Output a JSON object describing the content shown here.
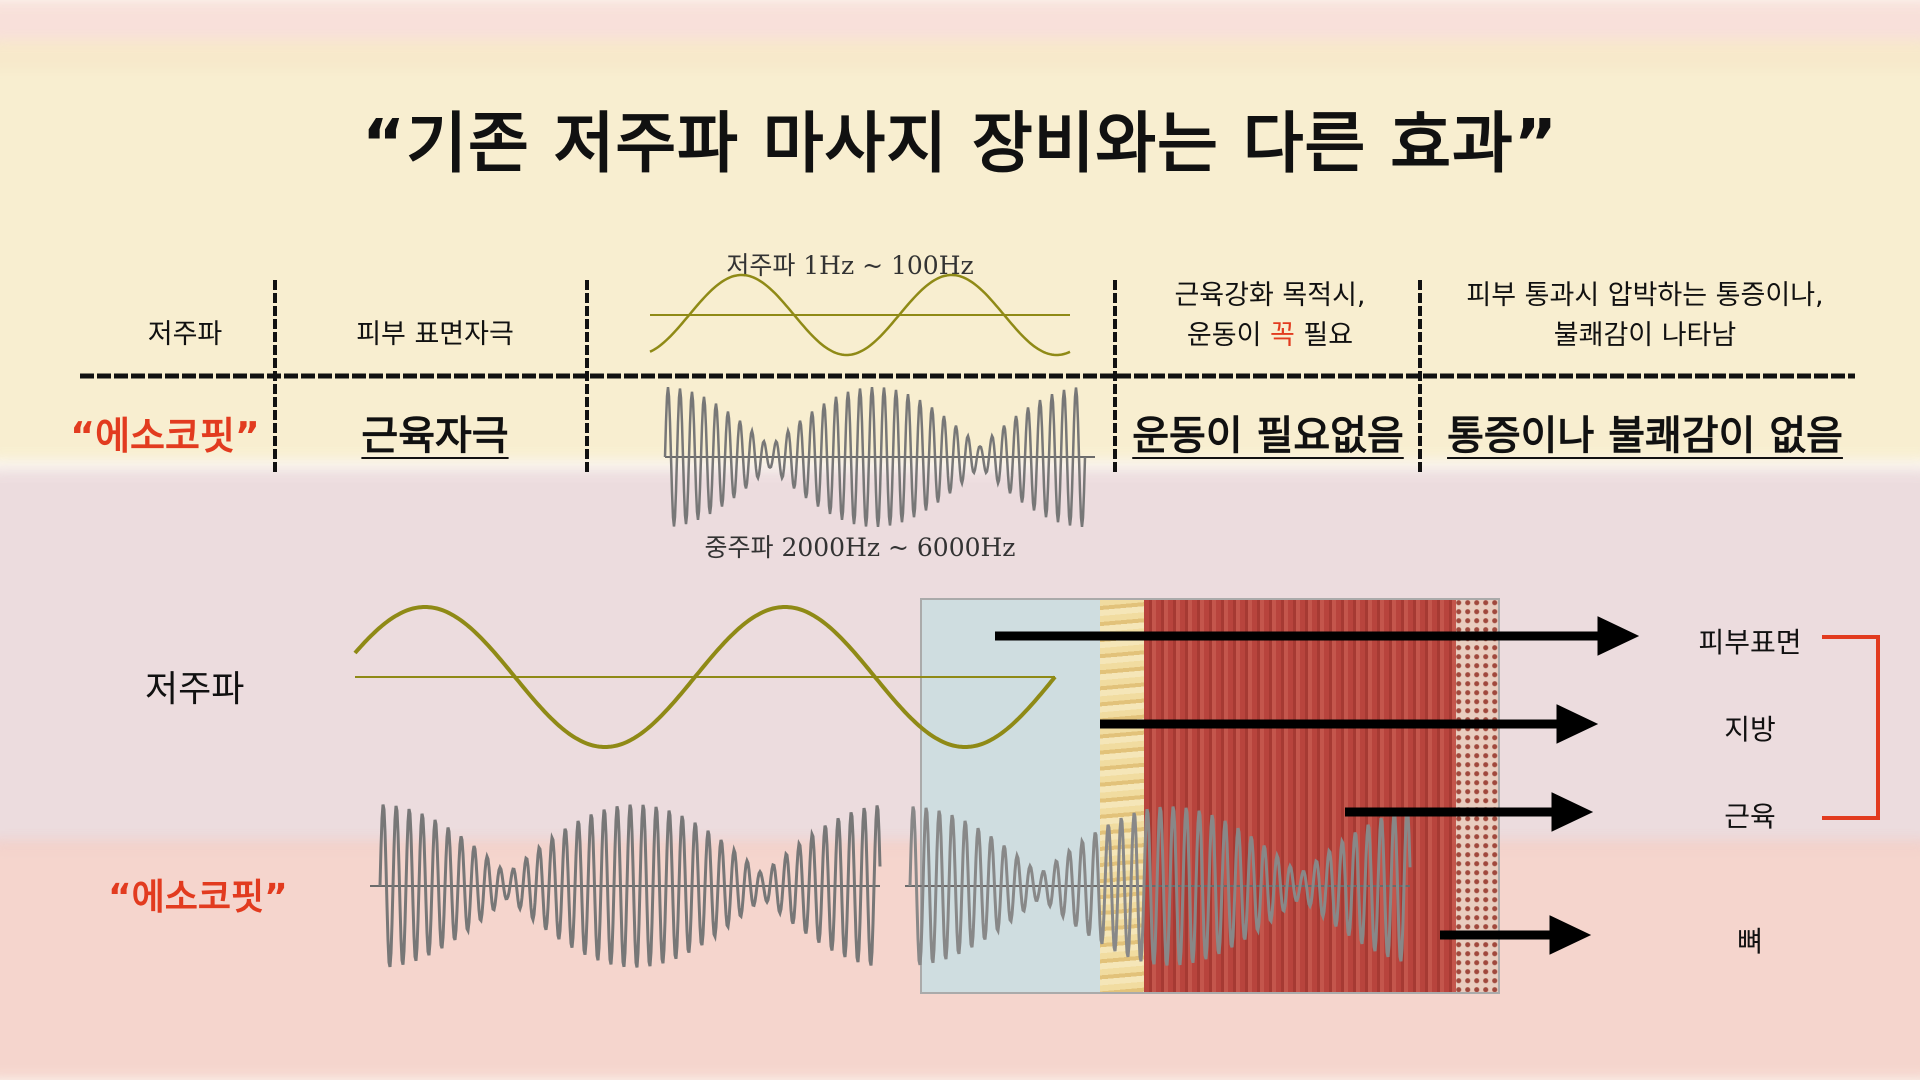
{
  "title": "“기존 저주파 마사지 장비와는 다른 효과”",
  "table": {
    "row1": {
      "name": "저주파",
      "effect": "피부 표면자극",
      "wave_caption": "저주파 1Hz ~ 100Hz",
      "note_line1": "근육강화 목적시,",
      "note_line2_a": "운동이 ",
      "note_line2_red": "꼭",
      "note_line2_b": " 필요",
      "feeling_line1": "피부 통과시 압박하는 통증이나,",
      "feeling_line2": "불쾌감이 나타남"
    },
    "row2": {
      "name": "“에소코핏”",
      "effect": "근육자극",
      "wave_caption": "중주파 2000Hz ~ 6000Hz",
      "note": "운동이 필요없음",
      "feeling": "통증이 나 불쾌감이 없음"
    }
  },
  "diagram": {
    "low_label": "저주파",
    "mid_label": "“에소코핏”",
    "layers": [
      "피부표면",
      "지방",
      "근육",
      "뼈"
    ]
  },
  "colors": {
    "accent_red": "#e23b1f",
    "low_wave": "#8f8a16",
    "mid_wave": "#6b6b6b",
    "skin": "#cfdde0",
    "fat": "#e9cf8c",
    "muscle": "#b2423c"
  }
}
